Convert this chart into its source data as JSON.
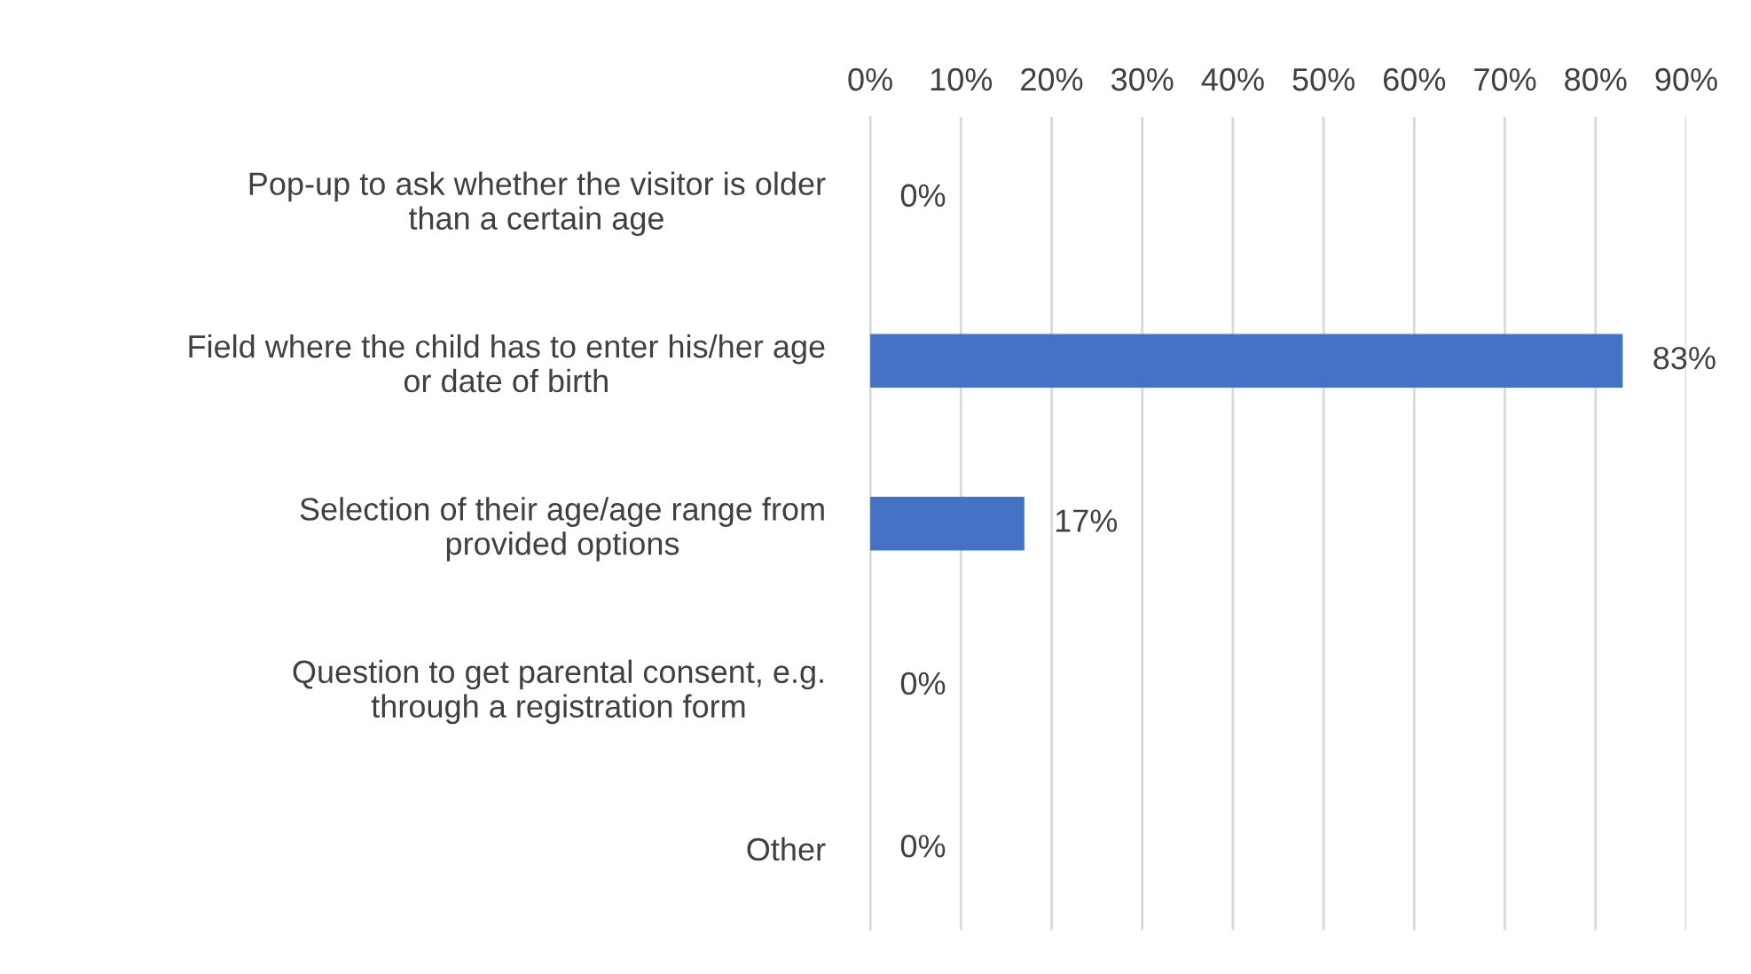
{
  "chart_data": {
    "type": "bar",
    "orientation": "horizontal",
    "categories": [
      "Pop-up to ask whether the visitor is older\nthan a certain age",
      "Field where the child has to enter his/her age\nor date of birth",
      "Selection of their age/age range from\nprovided options",
      "Question to get parental consent, e.g.\nthrough a registration form",
      "Other"
    ],
    "values": [
      0,
      83,
      17,
      0,
      0
    ],
    "value_labels": [
      "0%",
      "83%",
      "17%",
      "0%",
      "0%"
    ],
    "color": "#4472c4",
    "xlim": [
      0,
      90
    ],
    "xticks": [
      {
        "value": 0,
        "label": "0%"
      },
      {
        "value": 10,
        "label": "10%"
      },
      {
        "value": 20,
        "label": "20%"
      },
      {
        "value": 30,
        "label": "30%"
      },
      {
        "value": 40,
        "label": "40%"
      },
      {
        "value": 50,
        "label": "50%"
      },
      {
        "value": 60,
        "label": "60%"
      },
      {
        "value": 70,
        "label": "70%"
      },
      {
        "value": 80,
        "label": "80%"
      },
      {
        "value": 90,
        "label": "90%"
      }
    ],
    "grid": "x",
    "legend": false
  }
}
